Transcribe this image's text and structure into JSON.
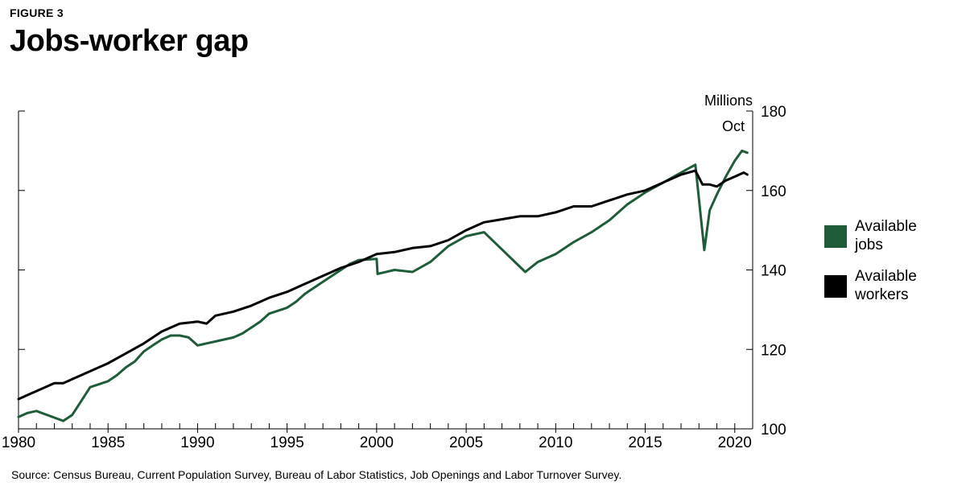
{
  "figure_label": "FIGURE 3",
  "source": "Source: Census Bureau, Current Population Survey, Bureau of Labor Statistics, Job Openings and Labor Turnover Survey.",
  "chart_data": {
    "type": "line",
    "title": "Jobs-worker gap",
    "ylabel": "Millions",
    "annotation": "Oct",
    "xlim": [
      1980,
      2021
    ],
    "ylim": [
      100,
      180
    ],
    "yticks": [
      100,
      120,
      140,
      160,
      180
    ],
    "xticks": [
      1980,
      1985,
      1990,
      1995,
      2000,
      2005,
      2010,
      2015,
      2020
    ],
    "y_axis_side": "right",
    "grid": false,
    "legend_position": "right",
    "colors": {
      "jobs": "#1f5c3a",
      "workers": "#000000"
    },
    "series": [
      {
        "name": "Available jobs",
        "x": [
          1980.0,
          1980.5,
          1981.0,
          1982.5,
          1983.0,
          1983.5,
          1984.0,
          1985.0,
          1985.5,
          1986.0,
          1986.5,
          1987.0,
          1987.5,
          1988.0,
          1988.5,
          1989.0,
          1989.5,
          1990.0,
          1990.5,
          1991.0,
          1991.5,
          1992.0,
          1992.5,
          1993.0,
          1993.5,
          1994.0,
          1995.0,
          1995.5,
          1996.0,
          1997.0,
          1998.0,
          1998.5,
          1999.0,
          2000.0,
          2000.05,
          2001.0,
          2002.0,
          2003.0,
          2004.0,
          2005.0,
          2006.0,
          2008.3,
          2009.0,
          2010.0,
          2011.0,
          2012.0,
          2013.0,
          2014.0,
          2015.0,
          2016.0,
          2017.0,
          2017.8,
          2018.3,
          2018.6,
          2019.0,
          2019.5,
          2020.0,
          2020.4,
          2020.7
        ],
        "values": [
          103.0,
          104.0,
          104.5,
          102.0,
          103.5,
          107.0,
          110.5,
          112.0,
          113.5,
          115.5,
          117.0,
          119.5,
          121.0,
          122.5,
          123.5,
          123.5,
          123.0,
          121.0,
          121.5,
          122.0,
          122.5,
          123.0,
          124.0,
          125.5,
          127.0,
          129.0,
          130.5,
          132.0,
          134.0,
          137.0,
          140.0,
          141.5,
          142.5,
          142.8,
          139.0,
          140.0,
          139.5,
          142.0,
          146.0,
          148.5,
          149.5,
          139.5,
          142.0,
          144.0,
          147.0,
          149.5,
          152.5,
          156.5,
          159.5,
          162.0,
          164.5,
          166.5,
          145.0,
          155.0,
          159.0,
          163.5,
          167.5,
          170.0,
          169.5
        ]
      },
      {
        "name": "Available workers",
        "x": [
          1980.0,
          1980.5,
          1981.0,
          1982.0,
          1982.5,
          1983.0,
          1984.0,
          1985.0,
          1986.0,
          1987.0,
          1988.0,
          1989.0,
          1990.0,
          1990.5,
          1991.0,
          1992.0,
          1993.0,
          1994.0,
          1995.0,
          1996.0,
          1997.0,
          1998.0,
          1999.0,
          2000.0,
          2001.0,
          2002.0,
          2003.0,
          2004.0,
          2005.0,
          2006.0,
          2008.0,
          2009.0,
          2010.0,
          2011.0,
          2012.0,
          2013.0,
          2014.0,
          2015.0,
          2016.0,
          2017.0,
          2017.8,
          2018.2,
          2018.6,
          2019.0,
          2019.5,
          2020.0,
          2020.5,
          2020.7
        ],
        "values": [
          107.5,
          108.5,
          109.5,
          111.5,
          111.5,
          112.5,
          114.5,
          116.5,
          119.0,
          121.5,
          124.5,
          126.5,
          127.0,
          126.5,
          128.5,
          129.5,
          131.0,
          133.0,
          134.5,
          136.5,
          138.5,
          140.5,
          142.0,
          144.0,
          144.5,
          145.5,
          146.0,
          147.5,
          150.0,
          152.0,
          153.5,
          153.5,
          154.5,
          156.0,
          156.0,
          157.5,
          159.0,
          160.0,
          162.0,
          164.0,
          165.0,
          161.5,
          161.5,
          161.0,
          162.5,
          163.5,
          164.5,
          164.0
        ]
      }
    ]
  }
}
